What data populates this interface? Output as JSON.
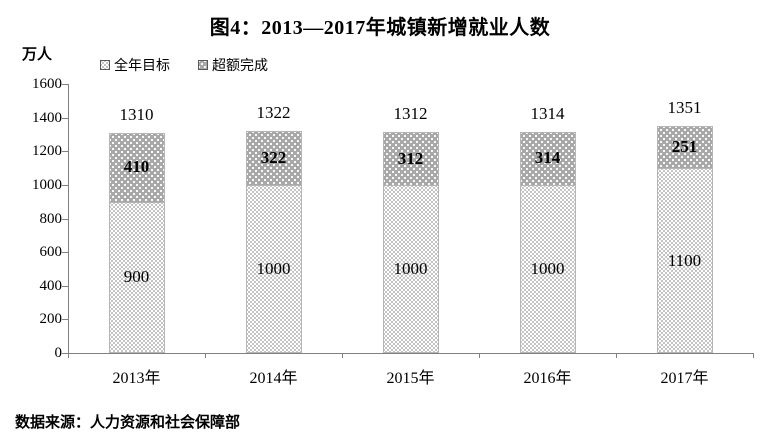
{
  "title": "图4：2013—2017年城镇新增就业人数",
  "source": "数据来源：人力资源和社会保障部",
  "chart_data": {
    "type": "bar",
    "stacked": true,
    "title": "图4：2013—2017年城镇新增就业人数",
    "unit_label": "万人",
    "xlabel": "",
    "ylabel": "万人",
    "categories": [
      "2013年",
      "2014年",
      "2015年",
      "2016年",
      "2017年"
    ],
    "series": [
      {
        "name": "全年目标",
        "values": [
          900,
          1000,
          1000,
          1000,
          1100
        ]
      },
      {
        "name": "超额完成",
        "values": [
          410,
          322,
          312,
          314,
          251
        ]
      }
    ],
    "totals": [
      1310,
      1322,
      1312,
      1314,
      1351
    ],
    "ylim": [
      0,
      1600
    ],
    "ytick_step": 200,
    "grid": false,
    "legend_position": "top-left"
  },
  "colors": {
    "target_fill": "#ffffff",
    "target_dot": "#8f8f8f",
    "excess_fill": "#a8a8a8",
    "excess_dot": "#ffffff",
    "axis": "#808080",
    "text": "#000000"
  }
}
